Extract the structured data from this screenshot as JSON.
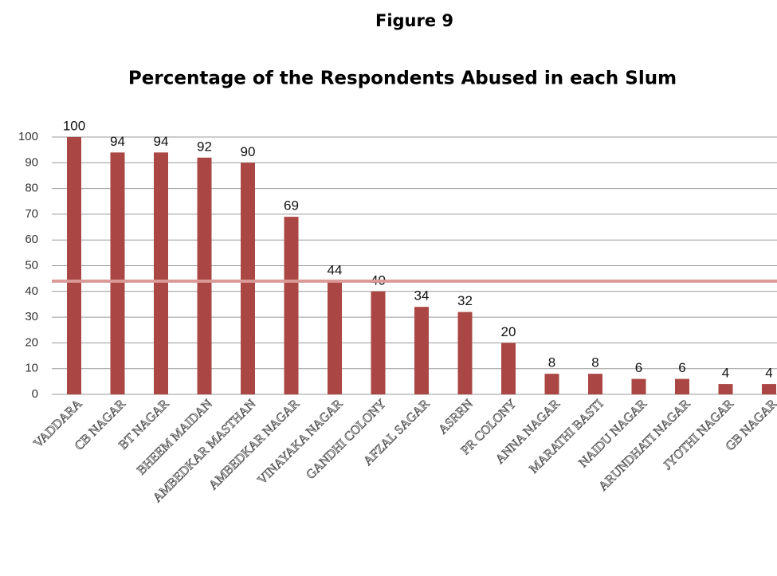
{
  "chart_data": {
    "type": "bar",
    "title": "Figure 9",
    "subtitle": "Percentage of the Respondents Abused in each Slum",
    "categories": [
      "VADDARA",
      "CB NAGAR",
      "BT NAGAR",
      "BHEEM MAIDAN",
      "AMBEDKAR MASTHAN",
      "AMBEDKAR NAGAR",
      "VINAYAKA NAGAR",
      "GANDHI COLONY",
      "AFZAL SAGAR",
      "ASRRN",
      "PR COLONY",
      "ANNA NAGAR",
      "MARATHI BASTI",
      "NAIDU NAGAR",
      "ARUNDHATI NAGAR",
      "JYOTHI NAGAR",
      "GB NAGAR"
    ],
    "values": [
      100,
      94,
      94,
      92,
      90,
      69,
      44,
      40,
      34,
      32,
      20,
      8,
      8,
      6,
      6,
      4,
      4
    ],
    "color": "#aa4643",
    "ylim": [
      0,
      100
    ],
    "yticks": [
      0,
      10,
      20,
      30,
      40,
      50,
      60,
      70,
      80,
      90,
      100
    ],
    "grid": true,
    "reference_line": {
      "value": 44,
      "color": "#d99a98"
    }
  }
}
